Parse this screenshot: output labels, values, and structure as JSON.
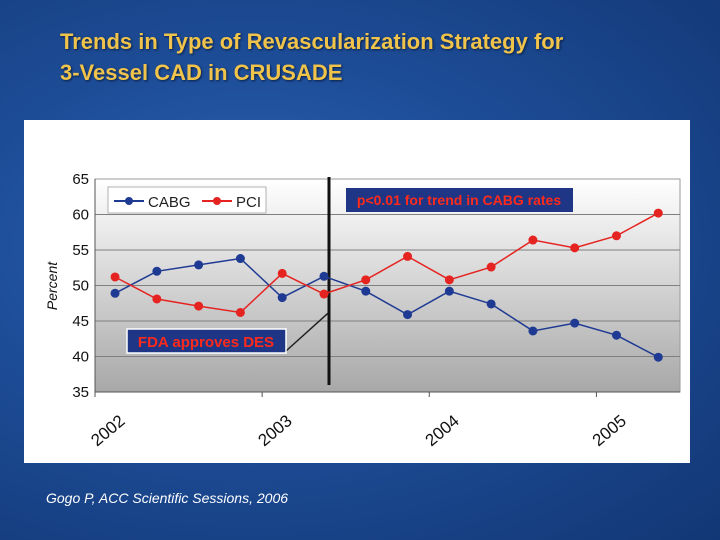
{
  "title_lines": [
    "Trends in Type of Revascularization Strategy for",
    "3-Vessel CAD in CRUSADE"
  ],
  "citation": "Gogo P, ACC Scientific Sessions, 2006",
  "colors": {
    "cabg": "#1f3a93",
    "pci": "#e52421",
    "annotation_bg": "#1f3585",
    "annotation_text": "#ff2a1a",
    "title": "#f0c34a"
  },
  "chart_data": {
    "type": "line",
    "title": "",
    "xlabel": "",
    "ylabel": "Percent",
    "ylim": [
      35,
      65
    ],
    "yticks": [
      35,
      40,
      45,
      50,
      55,
      60,
      65
    ],
    "xlim": [
      2002.0,
      2005.5
    ],
    "xticks": [
      2002,
      2003,
      2004,
      2005
    ],
    "xtick_labels": [
      "2002",
      "2003",
      "2004",
      "2005"
    ],
    "grid": true,
    "legend_position": "top-left",
    "series": [
      {
        "name": "CABG",
        "x": [
          2002.12,
          2002.37,
          2002.62,
          2002.87,
          2003.12,
          2003.37,
          2003.62,
          2003.87,
          2004.12,
          2004.37,
          2004.62,
          2004.87,
          2005.12,
          2005.37
        ],
        "values": [
          48.9,
          52.0,
          52.9,
          53.8,
          48.3,
          51.3,
          49.2,
          45.9,
          49.2,
          47.4,
          43.6,
          44.7,
          43.0,
          39.9
        ]
      },
      {
        "name": "PCI",
        "x": [
          2002.12,
          2002.37,
          2002.62,
          2002.87,
          2003.12,
          2003.37,
          2003.62,
          2003.87,
          2004.12,
          2004.37,
          2004.62,
          2004.87,
          2005.12,
          2005.37
        ],
        "values": [
          51.2,
          48.1,
          47.1,
          46.2,
          51.7,
          48.8,
          50.8,
          54.1,
          50.8,
          52.6,
          56.4,
          55.3,
          57.0,
          60.2
        ]
      }
    ],
    "marker_line_x": 2003.4,
    "annotations": [
      {
        "id": "fda",
        "text": "FDA approves DES",
        "target_x": 2003.4,
        "target_y": 46.1
      },
      {
        "id": "trend",
        "text": "p<0.01 for trend in CABG rates"
      }
    ]
  }
}
